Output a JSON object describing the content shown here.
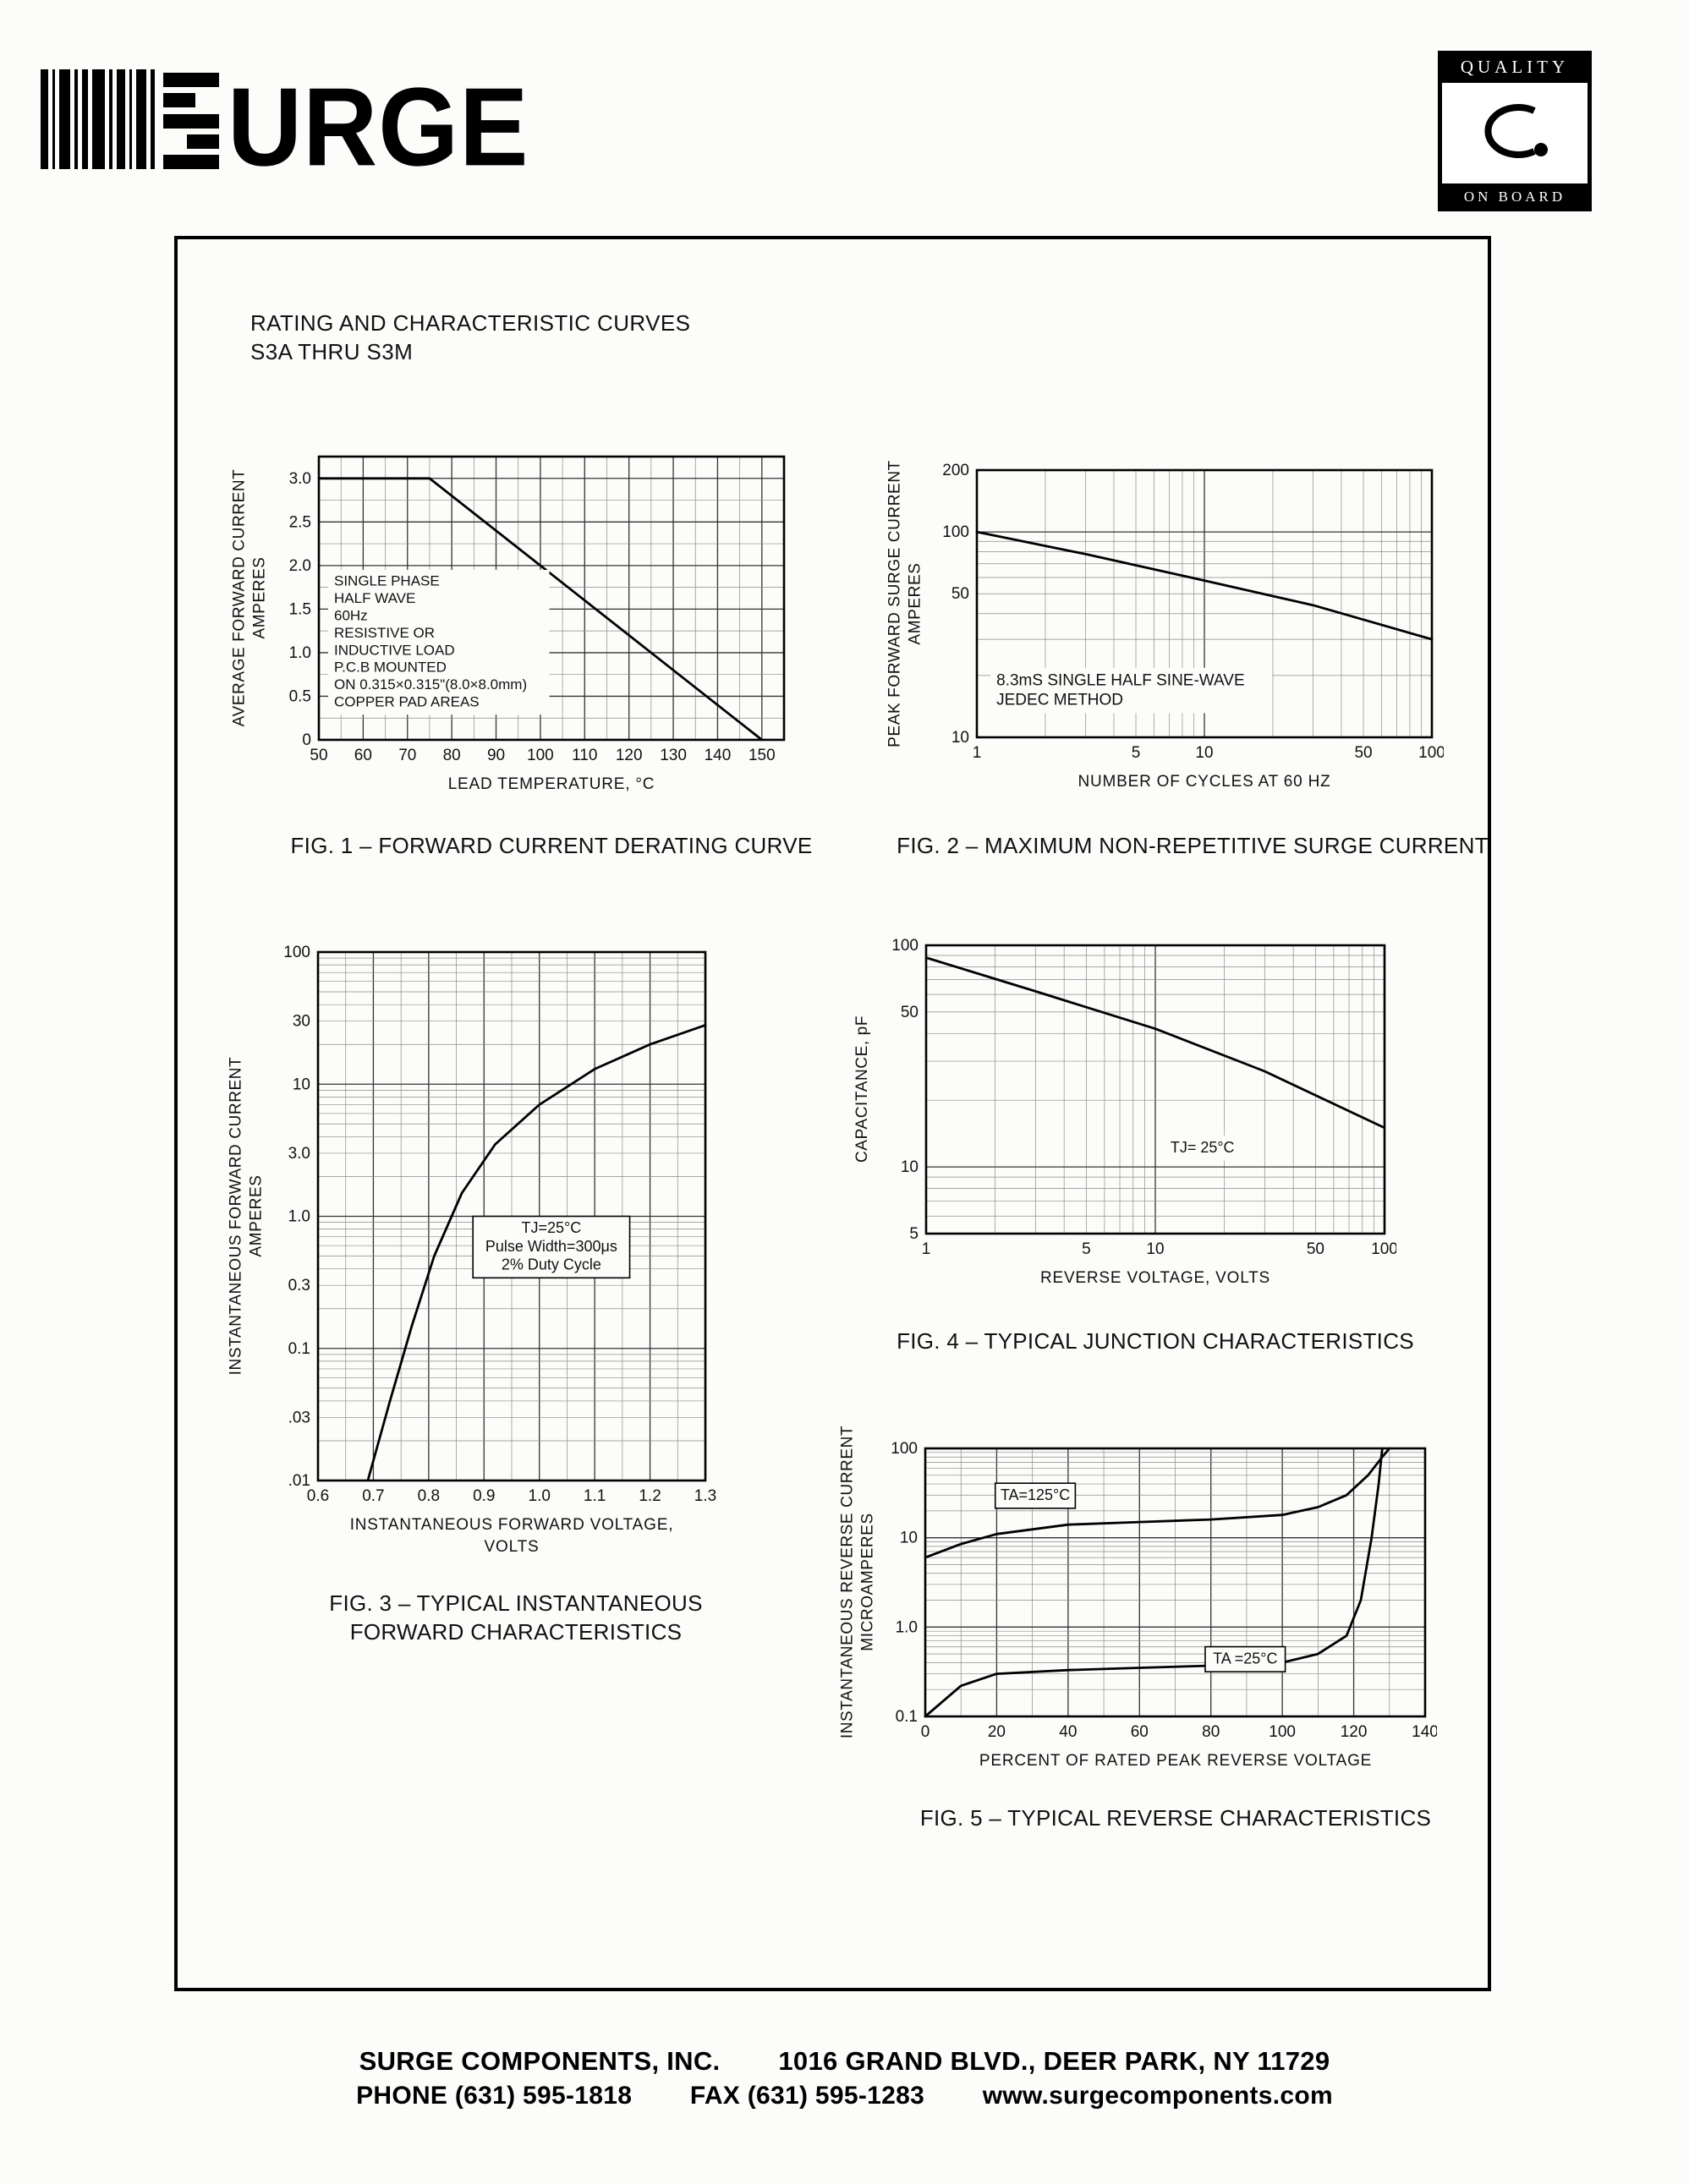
{
  "page": {
    "logo_text": "URGE",
    "badge": {
      "top": "QUALITY",
      "bottom": "ON BOARD"
    },
    "header": {
      "line1": "RATING AND CHARACTERISTIC CURVES",
      "line2": "S3A THRU S3M"
    },
    "footer": {
      "company": "SURGE COMPONENTS, INC.",
      "address": "1016 GRAND BLVD., DEER PARK, NY  11729",
      "phone": "PHONE (631) 595-1818",
      "fax": "FAX (631) 595-1283",
      "web": "www.surgecomponents.com"
    }
  },
  "chart_data": [
    {
      "id": "fig1",
      "type": "line",
      "title": "FIG. 1 – FORWARD CURRENT DERATING CURVE",
      "xlabel": "LEAD TEMPERATURE, °C",
      "ylabel": "AVERAGE FORWARD CURRENT",
      "ylabel2": "AMPERES",
      "x_scale": "linear",
      "x_range": [
        50,
        155
      ],
      "x_major": 10,
      "x_minor": 5,
      "y_scale": "linear",
      "y_range": [
        0,
        3.25
      ],
      "y_major": 0.5,
      "y_minor": 0.25,
      "x_ticks": [
        {
          "v": 50,
          "label": "50"
        },
        {
          "v": 60,
          "label": "60"
        },
        {
          "v": 70,
          "label": "70"
        },
        {
          "v": 80,
          "label": "80"
        },
        {
          "v": 90,
          "label": "90"
        },
        {
          "v": 100,
          "label": "100"
        },
        {
          "v": 110,
          "label": "110"
        },
        {
          "v": 120,
          "label": "120"
        },
        {
          "v": 130,
          "label": "130"
        },
        {
          "v": 140,
          "label": "140"
        },
        {
          "v": 150,
          "label": "150"
        }
      ],
      "y_ticks": [
        {
          "v": 3.0,
          "label": "3.0"
        },
        {
          "v": 2.5,
          "label": "2.5"
        },
        {
          "v": 2.0,
          "label": "2.0"
        },
        {
          "v": 1.5,
          "label": "1.5"
        },
        {
          "v": 1.0,
          "label": "1.0"
        },
        {
          "v": 0.5,
          "label": "0.5"
        },
        {
          "v": 0,
          "label": "0"
        }
      ],
      "series": [
        {
          "name": "derating-curve",
          "points": [
            [
              50,
              3.0
            ],
            [
              75,
              3.0
            ],
            [
              150,
              0
            ]
          ]
        }
      ],
      "annotations": [
        {
          "fx": 0.02,
          "fy": 0.4,
          "align": "left",
          "box": false,
          "fs": 17,
          "lines": [
            "SINGLE PHASE",
            "HALF WAVE",
            "60Hz",
            "RESISTIVE OR",
            "INDUCTIVE LOAD",
            "P.C.B MOUNTED",
            "ON 0.315×0.315\"(8.0×8.0mm)",
            "COPPER PAD AREAS"
          ]
        }
      ]
    },
    {
      "id": "fig2",
      "type": "line",
      "title": "FIG. 2 – MAXIMUM NON-REPETITIVE SURGE CURRENT",
      "xlabel": "NUMBER OF CYCLES AT 60 HZ",
      "ylabel": "PEAK FORWARD SURGE CURRENT",
      "ylabel2": "AMPERES",
      "x_scale": "log",
      "x_range": [
        1,
        100
      ],
      "y_scale": "log",
      "y_range": [
        10,
        200
      ],
      "x_ticks": [
        {
          "v": 1,
          "label": "1"
        },
        {
          "v": 5,
          "label": "5"
        },
        {
          "v": 10,
          "label": "10"
        },
        {
          "v": 50,
          "label": "50"
        },
        {
          "v": 100,
          "label": "100"
        }
      ],
      "y_ticks": [
        {
          "v": 200,
          "label": "200"
        },
        {
          "v": 100,
          "label": "100"
        },
        {
          "v": 50,
          "label": "50"
        },
        {
          "v": 10,
          "label": "10"
        }
      ],
      "series": [
        {
          "name": "surge-current",
          "points": [
            [
              1,
              100
            ],
            [
              3,
              78
            ],
            [
              10,
              58
            ],
            [
              30,
              44
            ],
            [
              100,
              30
            ]
          ]
        }
      ],
      "annotations": [
        {
          "fx": 0.03,
          "fy": 0.74,
          "align": "left",
          "box": false,
          "fs": 19,
          "lines": [
            "8.3mS  SINGLE  HALF  SINE-WAVE",
            "JEDEC  METHOD"
          ]
        }
      ]
    },
    {
      "id": "fig3",
      "type": "line",
      "title": "FIG. 3 – TYPICAL INSTANTANEOUS",
      "title2": "FORWARD CHARACTERISTICS",
      "xlabel": "INSTANTANEOUS  FORWARD  VOLTAGE,",
      "xlabel2": "VOLTS",
      "ylabel": "INSTANTANEOUS FORWARD CURRENT",
      "ylabel2": "AMPERES",
      "x_scale": "linear",
      "x_range": [
        0.6,
        1.3
      ],
      "x_major": 0.1,
      "x_minor": 0.05,
      "y_scale": "log",
      "y_range": [
        0.01,
        100
      ],
      "x_ticks": [
        {
          "v": 0.6,
          "label": "0.6"
        },
        {
          "v": 0.7,
          "label": "0.7"
        },
        {
          "v": 0.8,
          "label": "0.8"
        },
        {
          "v": 0.9,
          "label": "0.9"
        },
        {
          "v": 1.0,
          "label": "1.0"
        },
        {
          "v": 1.1,
          "label": "1.1"
        },
        {
          "v": 1.2,
          "label": "1.2"
        },
        {
          "v": 1.3,
          "label": "1.3"
        }
      ],
      "y_ticks": [
        {
          "v": 100,
          "label": "100"
        },
        {
          "v": 30,
          "label": "30"
        },
        {
          "v": 10,
          "label": "10"
        },
        {
          "v": 3,
          "label": "3.0"
        },
        {
          "v": 1,
          "label": "1.0"
        },
        {
          "v": 0.3,
          "label": "0.3"
        },
        {
          "v": 0.1,
          "label": "0.1"
        },
        {
          "v": 0.03,
          "label": ".03"
        },
        {
          "v": 0.01,
          "label": ".01"
        }
      ],
      "series": [
        {
          "name": "forward-characteristic",
          "points": [
            [
              0.69,
              0.01
            ],
            [
              0.73,
              0.04
            ],
            [
              0.77,
              0.15
            ],
            [
              0.81,
              0.5
            ],
            [
              0.86,
              1.5
            ],
            [
              0.92,
              3.5
            ],
            [
              1.0,
              7
            ],
            [
              1.1,
              13
            ],
            [
              1.2,
              20
            ],
            [
              1.3,
              28
            ]
          ]
        }
      ],
      "annotations": [
        {
          "fx": 0.4,
          "fy": 0.5,
          "align": "center",
          "box": true,
          "fs": 18,
          "lines": [
            "TJ=25°C",
            "Pulse Width=300μs",
            "2% Duty Cycle"
          ]
        }
      ]
    },
    {
      "id": "fig4",
      "type": "line",
      "title": "FIG. 4 – TYPICAL JUNCTION CHARACTERISTICS",
      "xlabel": "REVERSE  VOLTAGE,  VOLTS",
      "ylabel": "CAPACITANCE, pF",
      "x_scale": "log",
      "x_range": [
        1,
        100
      ],
      "y_scale": "log",
      "y_range": [
        5,
        100
      ],
      "x_ticks": [
        {
          "v": 1,
          "label": "1"
        },
        {
          "v": 5,
          "label": "5"
        },
        {
          "v": 10,
          "label": "10"
        },
        {
          "v": 50,
          "label": "50"
        },
        {
          "v": 100,
          "label": "100"
        }
      ],
      "y_ticks": [
        {
          "v": 100,
          "label": "100"
        },
        {
          "v": 50,
          "label": "50"
        },
        {
          "v": 10,
          "label": "10"
        },
        {
          "v": 5,
          "label": "5"
        }
      ],
      "series": [
        {
          "name": "junction-capacitance",
          "points": [
            [
              1,
              88
            ],
            [
              3,
              62
            ],
            [
              10,
              42
            ],
            [
              30,
              27
            ],
            [
              100,
              15
            ]
          ]
        }
      ],
      "annotations": [
        {
          "fx": 0.52,
          "fy": 0.66,
          "align": "left",
          "box": false,
          "fs": 18,
          "lines": [
            "TJ= 25°C"
          ]
        }
      ]
    },
    {
      "id": "fig5",
      "type": "line",
      "title": "FIG. 5 – TYPICAL REVERSE CHARACTERISTICS",
      "xlabel": "PERCENT  OF  RATED  PEAK  REVERSE  VOLTAGE",
      "ylabel": "INSTANTANEOUS REVERSE CURRENT",
      "ylabel2": "MICROAMPERES",
      "x_scale": "linear",
      "x_range": [
        0,
        140
      ],
      "x_major": 20,
      "x_minor": 10,
      "y_scale": "log",
      "y_range": [
        0.1,
        100
      ],
      "x_ticks": [
        {
          "v": 0,
          "label": "0"
        },
        {
          "v": 20,
          "label": "20"
        },
        {
          "v": 40,
          "label": "40"
        },
        {
          "v": 60,
          "label": "60"
        },
        {
          "v": 80,
          "label": "80"
        },
        {
          "v": 100,
          "label": "100"
        },
        {
          "v": 120,
          "label": "120"
        },
        {
          "v": 140,
          "label": "140"
        }
      ],
      "y_ticks": [
        {
          "v": 100,
          "label": "100"
        },
        {
          "v": 10,
          "label": "10"
        },
        {
          "v": 1,
          "label": "1.0"
        },
        {
          "v": 0.1,
          "label": "0.1"
        }
      ],
      "series": [
        {
          "name": "reverse-125c",
          "points": [
            [
              0,
              6
            ],
            [
              10,
              8.5
            ],
            [
              20,
              11
            ],
            [
              40,
              14
            ],
            [
              60,
              15
            ],
            [
              80,
              16
            ],
            [
              100,
              18
            ],
            [
              110,
              22
            ],
            [
              118,
              30
            ],
            [
              124,
              50
            ],
            [
              128,
              80
            ],
            [
              130,
              100
            ]
          ]
        },
        {
          "name": "reverse-25c",
          "points": [
            [
              0,
              0.1
            ],
            [
              10,
              0.22
            ],
            [
              20,
              0.3
            ],
            [
              40,
              0.33
            ],
            [
              60,
              0.35
            ],
            [
              80,
              0.37
            ],
            [
              100,
              0.4
            ],
            [
              110,
              0.5
            ],
            [
              118,
              0.8
            ],
            [
              122,
              2
            ],
            [
              125,
              10
            ],
            [
              127,
              40
            ],
            [
              128,
              100
            ]
          ]
        }
      ],
      "annotations": [
        {
          "fx": 0.14,
          "fy": 0.13,
          "align": "center",
          "box": true,
          "fs": 18,
          "lines": [
            "TA=125°C"
          ]
        },
        {
          "fx": 0.56,
          "fy": 0.74,
          "align": "center",
          "box": true,
          "fs": 18,
          "lines": [
            "TA =25°C"
          ]
        }
      ]
    }
  ]
}
